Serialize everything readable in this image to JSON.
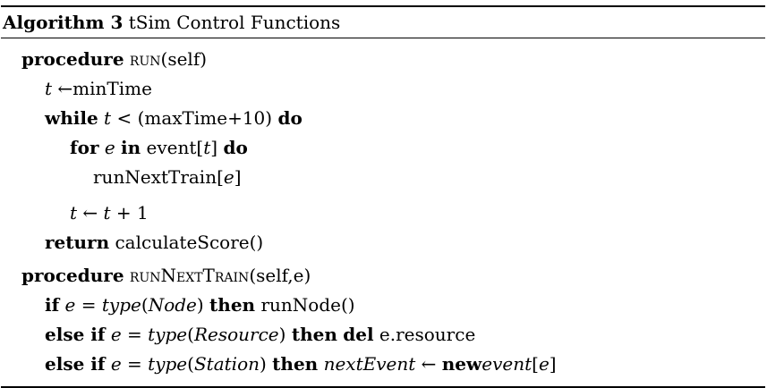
{
  "algorithm": {
    "label": "Algorithm 3",
    "title": "tSim Control Functions"
  },
  "lines": {
    "l1": [
      "procedure",
      "run",
      "(self)"
    ],
    "l2": [
      "t",
      " ←minTime"
    ],
    "l3": [
      "while",
      " t",
      " < (maxTime+10) ",
      "do"
    ],
    "l4": [
      "for",
      " e",
      " ",
      "in",
      " event[",
      "t",
      "] ",
      "do"
    ],
    "l5": [
      "runNextTrain[",
      "e",
      "]"
    ],
    "l6": [
      "t",
      " ← ",
      "t",
      " + 1"
    ],
    "l7": [
      "return",
      " calculateScore()"
    ],
    "l8": [
      "procedure",
      "runNextTrain",
      "(self,e)"
    ],
    "l9": [
      "if",
      " e",
      " = ",
      "type",
      "(",
      "Node",
      ") ",
      "then",
      " runNode()"
    ],
    "l10": [
      "else if",
      " e",
      " = ",
      "type",
      "(",
      "Resource",
      ") ",
      "then",
      " ",
      "del",
      " e.resource"
    ],
    "l11": [
      "else if",
      " e",
      " = ",
      "type",
      "(",
      "Station",
      ") ",
      "then",
      " ",
      "nextEvent",
      " ← ",
      "new",
      "event",
      "[",
      "e",
      "]"
    ]
  }
}
